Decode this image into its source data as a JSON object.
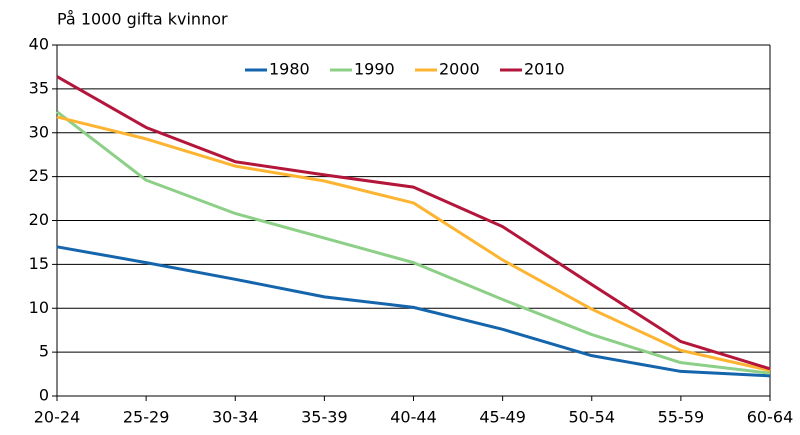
{
  "chart_data": {
    "type": "line",
    "title": "På 1000 gifta kvinnor",
    "categories": [
      "20-24",
      "25-29",
      "30-34",
      "35-39",
      "40-44",
      "45-49",
      "50-54",
      "55-59",
      "60-64"
    ],
    "series": [
      {
        "name": "1980",
        "color": "#1565ad",
        "values": [
          17.0,
          15.2,
          13.3,
          11.3,
          10.1,
          7.6,
          4.6,
          2.8,
          2.3
        ]
      },
      {
        "name": "1990",
        "color": "#8ccf86",
        "values": [
          32.4,
          24.6,
          20.8,
          18.0,
          15.2,
          11.0,
          7.0,
          3.8,
          2.6
        ]
      },
      {
        "name": "2000",
        "color": "#fdb431",
        "values": [
          31.8,
          29.3,
          26.2,
          24.5,
          22.0,
          15.5,
          9.9,
          5.2,
          2.9
        ]
      },
      {
        "name": "2010",
        "color": "#b3163a",
        "values": [
          36.4,
          30.6,
          26.7,
          25.2,
          23.8,
          19.3,
          12.7,
          6.2,
          3.1
        ]
      }
    ],
    "ylim": [
      0,
      40
    ],
    "yticks": [
      0,
      5,
      10,
      15,
      20,
      25,
      30,
      35,
      40
    ],
    "grid": true,
    "legend": "top"
  }
}
